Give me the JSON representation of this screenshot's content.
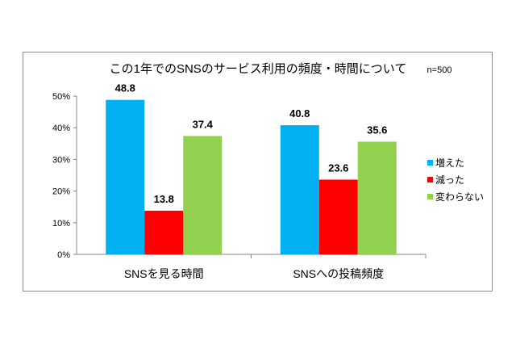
{
  "chart_data": {
    "type": "bar",
    "title": "この1年でのSNSのサービス利用の頻度・時間について",
    "annotation": "n=500",
    "categories": [
      "SNSを見る時間",
      "SNSへの投稿頻度"
    ],
    "series": [
      {
        "name": "増えた",
        "values": [
          48.8,
          40.8
        ],
        "color": "#00b0f0"
      },
      {
        "name": "減った",
        "values": [
          13.8,
          23.6
        ],
        "color": "#ff0000"
      },
      {
        "name": "変わらない",
        "values": [
          37.4,
          35.6
        ],
        "color": "#92d050"
      }
    ],
    "yticks": [
      "0%",
      "10%",
      "20%",
      "30%",
      "40%",
      "50%"
    ],
    "ylim": [
      0,
      50
    ],
    "grid": false,
    "legend": "right"
  }
}
